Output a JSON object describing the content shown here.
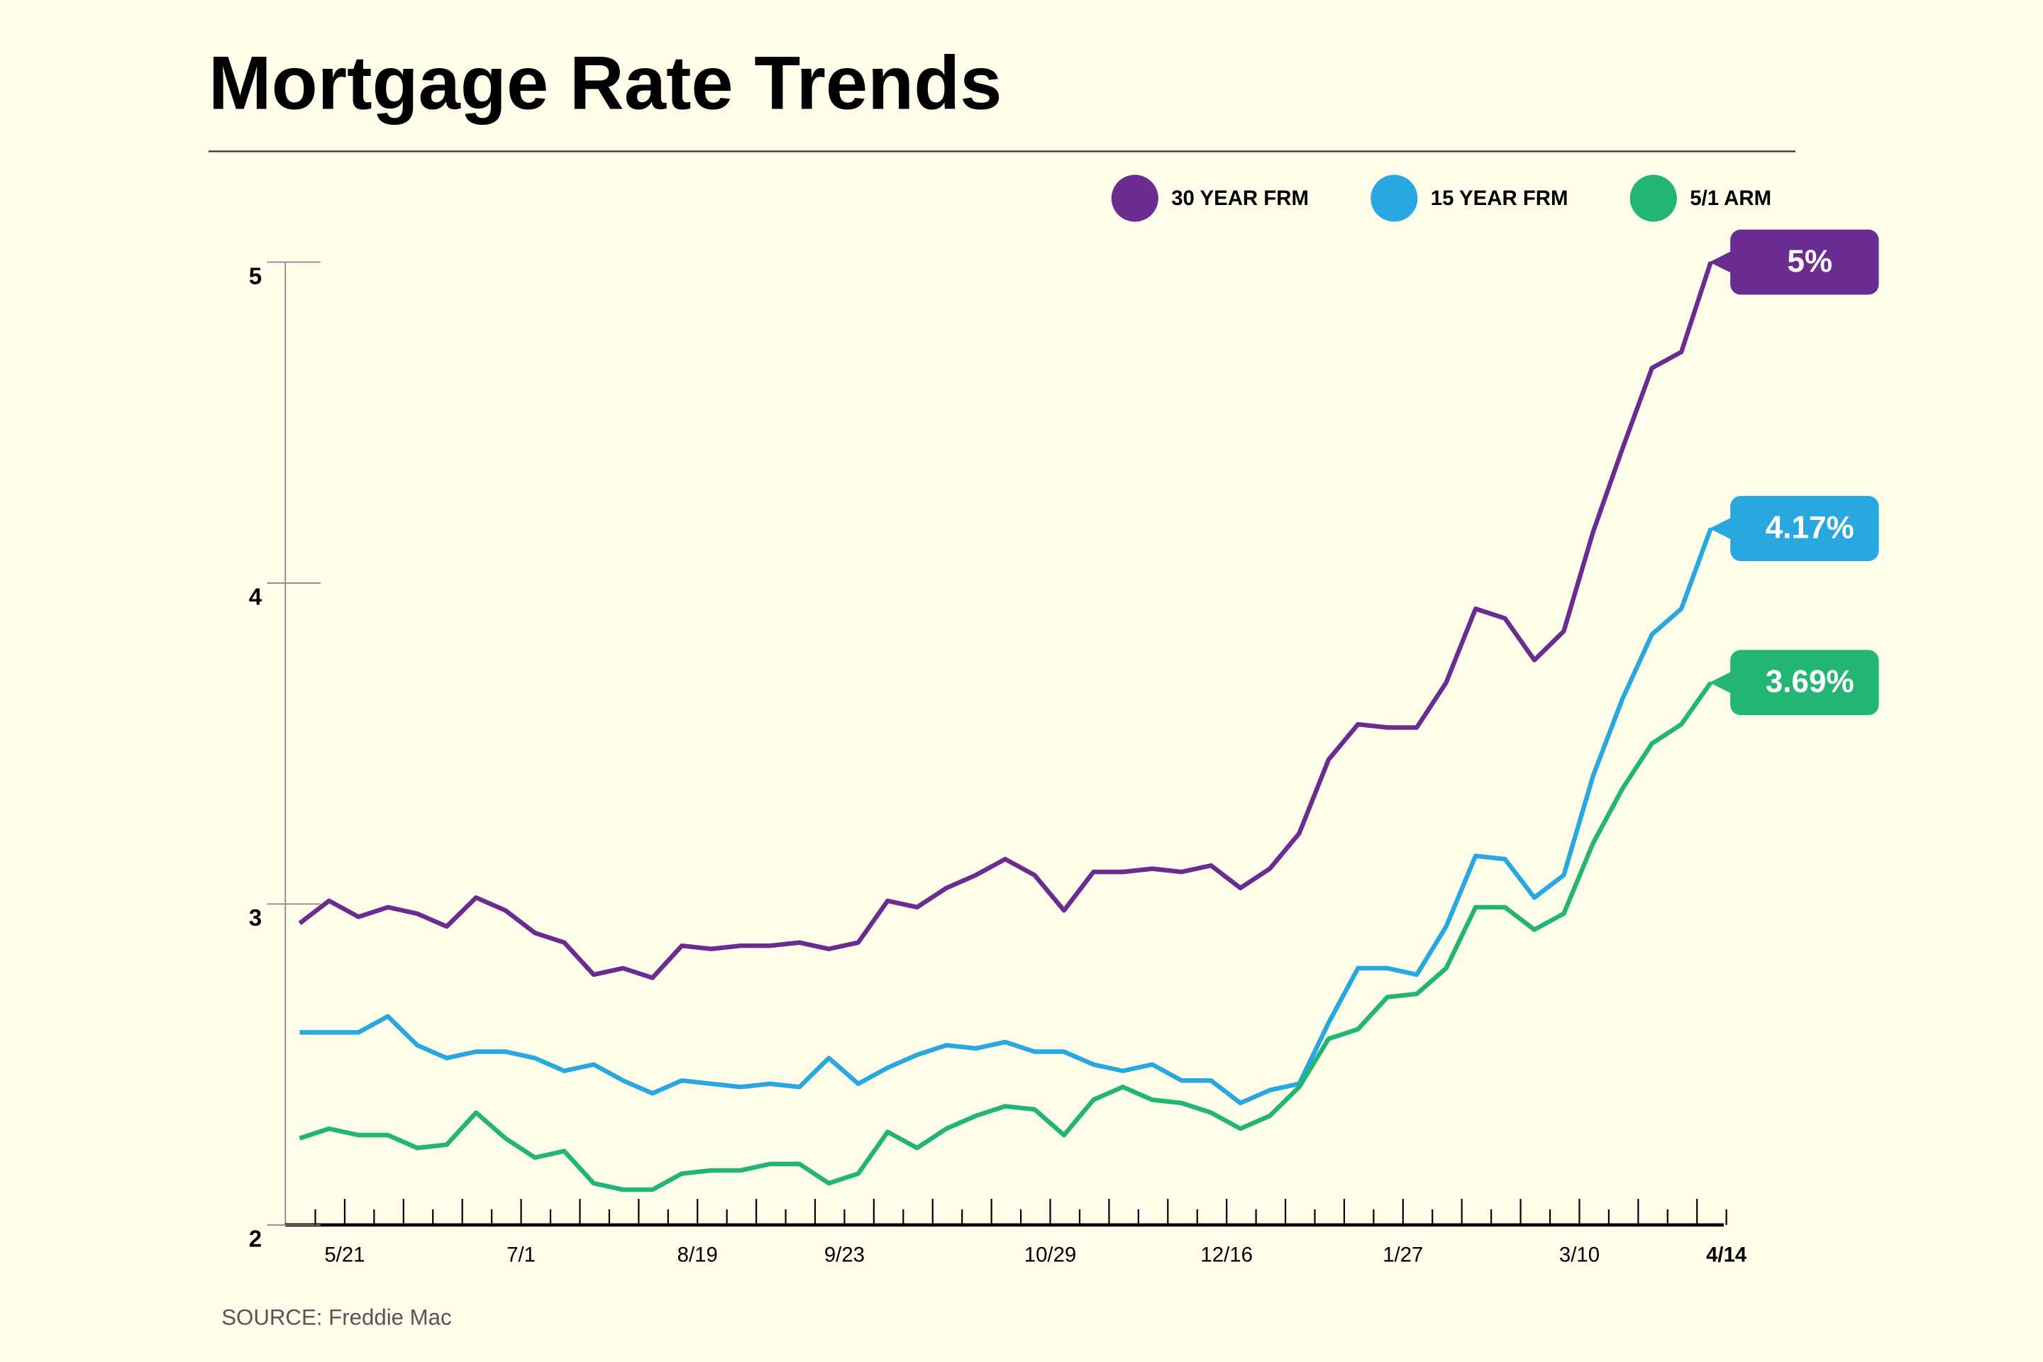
{
  "chart_data": {
    "type": "line",
    "title": "Mortgage Rate Trends",
    "source": "SOURCE: Freddie Mac",
    "categories": [
      null,
      "5/21",
      null,
      null,
      null,
      null,
      null,
      "7/1",
      null,
      null,
      null,
      null,
      null,
      "8/19",
      null,
      null,
      null,
      null,
      "9/23",
      null,
      null,
      null,
      null,
      null,
      null,
      "10/29",
      null,
      null,
      null,
      null,
      null,
      "12/16",
      null,
      null,
      null,
      null,
      null,
      "1/27",
      null,
      null,
      null,
      null,
      null,
      "3/10",
      null,
      null,
      null,
      null,
      "4/14"
    ],
    "ylim": [
      2,
      5
    ],
    "yticks": [
      2,
      3,
      4,
      5
    ],
    "legend": "top-right",
    "series": [
      {
        "name": "30 YEAR FRM",
        "color": "#6a2c91",
        "values": [
          2.94,
          3.01,
          2.96,
          2.99,
          2.97,
          2.93,
          3.02,
          2.98,
          2.91,
          2.88,
          2.78,
          2.8,
          2.77,
          2.87,
          2.86,
          2.87,
          2.87,
          2.88,
          2.86,
          2.88,
          3.01,
          2.99,
          3.05,
          3.09,
          3.14,
          3.09,
          2.98,
          3.1,
          3.1,
          3.11,
          3.1,
          3.12,
          3.05,
          3.11,
          3.22,
          3.45,
          3.56,
          3.55,
          3.55,
          3.69,
          3.92,
          3.89,
          3.76,
          3.85,
          4.16,
          4.42,
          4.67,
          4.72,
          5.0
        ],
        "value_labels": [
          null,
          null,
          null,
          null,
          null,
          null,
          null,
          null,
          null,
          null,
          null,
          null,
          null,
          null,
          null,
          null,
          null,
          null,
          null,
          null,
          null,
          null,
          null,
          null,
          null,
          null,
          null,
          null,
          null,
          null,
          null,
          null,
          null,
          null,
          null,
          null,
          null,
          null,
          null,
          null,
          null,
          null,
          null,
          null,
          null,
          null,
          null,
          null,
          "5%"
        ]
      },
      {
        "name": "15 YEAR FRM",
        "color": "#29a8e0",
        "values": [
          2.6,
          2.6,
          2.6,
          2.65,
          2.56,
          2.52,
          2.54,
          2.54,
          2.52,
          2.48,
          2.5,
          2.45,
          2.41,
          2.45,
          2.44,
          2.43,
          2.44,
          2.43,
          2.52,
          2.44,
          2.49,
          2.53,
          2.56,
          2.55,
          2.57,
          2.54,
          2.54,
          2.5,
          2.48,
          2.5,
          2.45,
          2.45,
          2.38,
          2.42,
          2.44,
          2.63,
          2.8,
          2.8,
          2.78,
          2.93,
          3.15,
          3.14,
          3.02,
          3.09,
          3.4,
          3.64,
          3.84,
          3.92,
          4.17
        ],
        "value_labels": [
          null,
          null,
          null,
          null,
          null,
          null,
          null,
          null,
          null,
          null,
          null,
          null,
          null,
          null,
          null,
          null,
          null,
          null,
          null,
          null,
          null,
          null,
          null,
          null,
          null,
          null,
          null,
          null,
          null,
          null,
          null,
          null,
          null,
          null,
          null,
          null,
          null,
          null,
          null,
          null,
          null,
          null,
          null,
          null,
          null,
          null,
          null,
          null,
          "4.17%"
        ]
      },
      {
        "name": "5/1 ARM",
        "color": "#22b573",
        "values": [
          2.27,
          2.3,
          2.28,
          2.28,
          2.24,
          2.25,
          2.35,
          2.27,
          2.21,
          2.23,
          2.13,
          2.11,
          2.11,
          2.16,
          2.17,
          2.17,
          2.19,
          2.19,
          2.13,
          2.16,
          2.29,
          2.24,
          2.3,
          2.34,
          2.37,
          2.36,
          2.28,
          2.39,
          2.43,
          2.39,
          2.38,
          2.35,
          2.3,
          2.34,
          2.43,
          2.58,
          2.61,
          2.71,
          2.72,
          2.8,
          2.99,
          2.99,
          2.92,
          2.97,
          3.19,
          3.36,
          3.5,
          3.56,
          3.69
        ],
        "value_labels": [
          null,
          null,
          null,
          null,
          null,
          null,
          null,
          null,
          null,
          null,
          null,
          null,
          null,
          null,
          null,
          null,
          null,
          null,
          null,
          null,
          null,
          null,
          null,
          null,
          null,
          null,
          null,
          null,
          null,
          null,
          null,
          null,
          null,
          null,
          null,
          null,
          null,
          null,
          null,
          null,
          null,
          null,
          null,
          null,
          null,
          null,
          null,
          null,
          "3.69%"
        ]
      }
    ]
  }
}
